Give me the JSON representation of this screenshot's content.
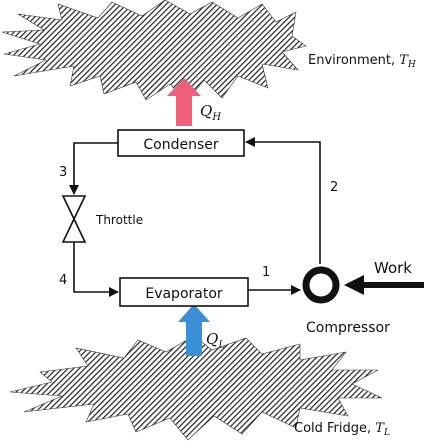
{
  "diagram": {
    "environment": {
      "label": "Environment, ",
      "symbol": "T",
      "subscript": "H"
    },
    "cold_fridge": {
      "label": "Cold Fridge, ",
      "symbol": "T",
      "subscript": "L"
    },
    "heat_out": {
      "symbol": "Q",
      "subscript": "H",
      "arrow_color": "#f0607a"
    },
    "heat_in": {
      "symbol": "Q",
      "subscript": "L",
      "arrow_color": "#3a8fd6"
    },
    "condenser": "Condenser",
    "evaporator": "Evaporator",
    "throttle": "Throttle",
    "compressor": "Compressor",
    "work": "Work",
    "state_points": [
      "1",
      "2",
      "3",
      "4"
    ]
  }
}
